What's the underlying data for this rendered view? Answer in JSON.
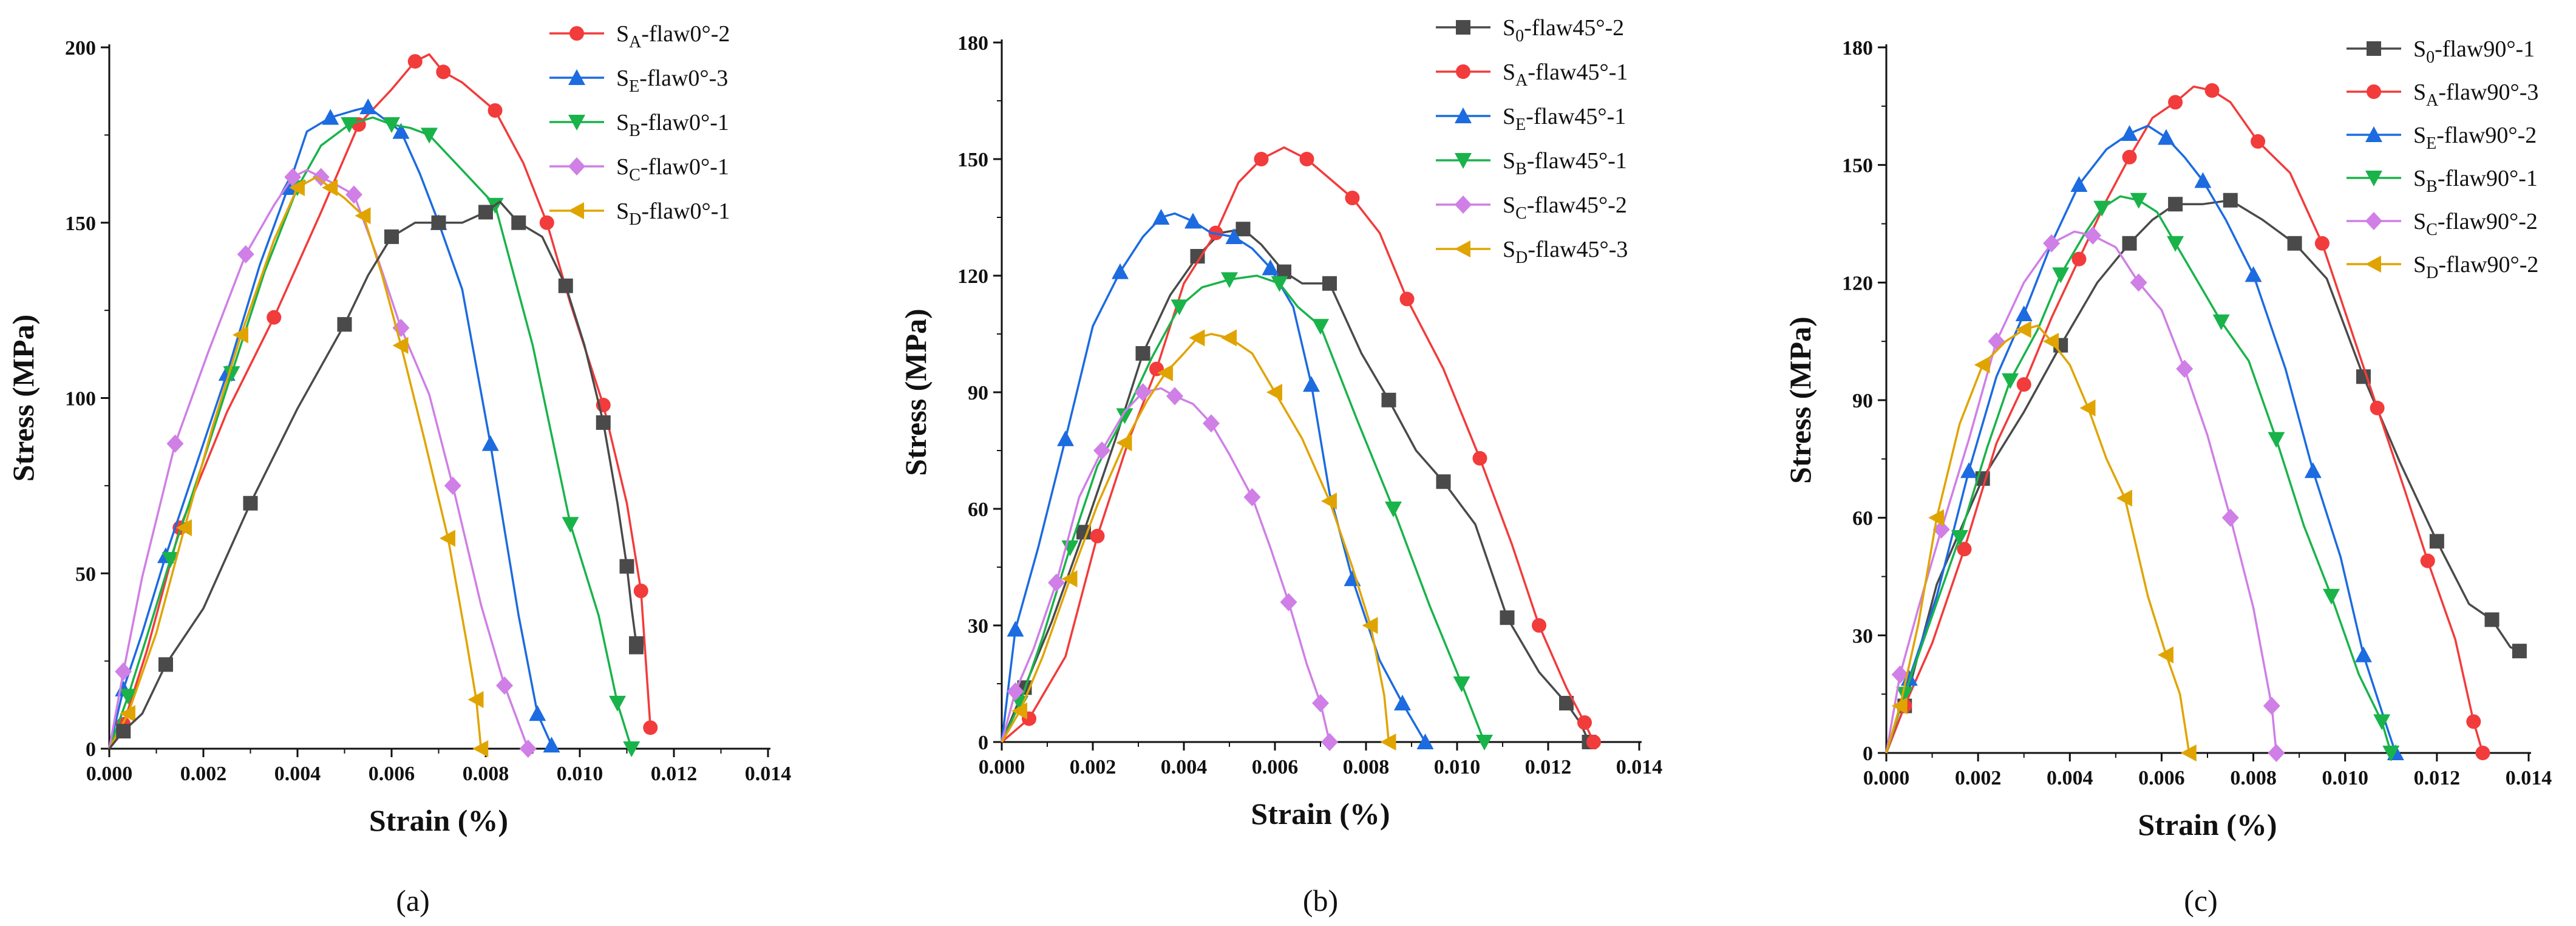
{
  "colors": {
    "S0": "#4a4a4a",
    "SA": "#f23b3b",
    "SE": "#1c6be0",
    "SB": "#19b34a",
    "SC": "#cf7fe6",
    "SD": "#e0a400",
    "axis": "#111111"
  },
  "chart_data": [
    {
      "type": "line",
      "caption": "(a)",
      "xlabel": "Strain (%)",
      "ylabel": "Stress (MPa)",
      "xlim": [
        0,
        0.014
      ],
      "ylim": [
        0,
        200
      ],
      "xticks": [
        "0.000",
        "0.002",
        "0.004",
        "0.006",
        "0.008",
        "0.010",
        "0.012",
        "0.014"
      ],
      "yticks": [
        "0",
        "50",
        "100",
        "150",
        "200"
      ],
      "legend_position": "top-right",
      "series": [
        {
          "sub": "A",
          "name": "-flaw0°-2",
          "color_key": "SA",
          "marker": "circle",
          "x": [
            0,
            0.0003,
            0.0008,
            0.0015,
            0.0025,
            0.0035,
            0.0045,
            0.0053,
            0.006,
            0.0065,
            0.0068,
            0.0071,
            0.0075,
            0.0082,
            0.0088,
            0.0093,
            0.0098,
            0.0105,
            0.011,
            0.0113,
            0.0115
          ],
          "y": [
            0,
            7,
            28,
            63,
            96,
            123,
            153,
            178,
            188,
            196,
            198,
            193,
            190,
            182,
            167,
            150,
            127,
            98,
            70,
            45,
            6
          ]
        },
        {
          "sub": "E",
          "name": "-flaw0°-3",
          "color_key": "SE",
          "marker": "triangle-up",
          "x": [
            0,
            0.0003,
            0.0007,
            0.0012,
            0.0018,
            0.0025,
            0.0032,
            0.0038,
            0.0042,
            0.0047,
            0.0052,
            0.0055,
            0.0058,
            0.0062,
            0.0066,
            0.007,
            0.0075,
            0.0081,
            0.0087,
            0.0091,
            0.0094
          ],
          "y": [
            0,
            17,
            33,
            55,
            79,
            107,
            138,
            160,
            176,
            180,
            182,
            183,
            180,
            176,
            164,
            150,
            131,
            87,
            38,
            10,
            1
          ]
        },
        {
          "sub": "B",
          "name": "-flaw0°-1",
          "color_key": "SB",
          "marker": "triangle-down",
          "x": [
            0,
            0.0004,
            0.0008,
            0.0013,
            0.0019,
            0.0026,
            0.0033,
            0.004,
            0.0045,
            0.0051,
            0.0056,
            0.006,
            0.0064,
            0.0068,
            0.0075,
            0.0082,
            0.009,
            0.0098,
            0.0104,
            0.0108,
            0.0111
          ],
          "y": [
            0,
            15,
            32,
            54,
            78,
            107,
            136,
            160,
            172,
            178,
            180,
            178,
            177,
            175,
            165,
            155,
            115,
            64,
            38,
            13,
            0
          ]
        },
        {
          "sub": "C",
          "name": "-flaw0°-1",
          "color_key": "SC",
          "marker": "diamond",
          "x": [
            0,
            0.0003,
            0.0007,
            0.0014,
            0.0021,
            0.0029,
            0.0035,
            0.0039,
            0.0042,
            0.0045,
            0.0048,
            0.0052,
            0.0057,
            0.0062,
            0.0068,
            0.0073,
            0.0079,
            0.0084,
            0.0089
          ],
          "y": [
            0,
            22,
            49,
            87,
            113,
            141,
            155,
            163,
            165,
            163,
            161,
            158,
            140,
            120,
            101,
            75,
            41,
            18,
            0
          ]
        },
        {
          "sub": "D",
          "name": "-flaw0°-1",
          "color_key": "SD",
          "marker": "triangle-left",
          "x": [
            0,
            0.0004,
            0.001,
            0.0016,
            0.0022,
            0.0028,
            0.0035,
            0.004,
            0.0044,
            0.0047,
            0.005,
            0.0054,
            0.0058,
            0.0062,
            0.0067,
            0.0072,
            0.0076,
            0.0078,
            0.0079
          ],
          "y": [
            0,
            10,
            33,
            63,
            92,
            118,
            145,
            160,
            163,
            160,
            157,
            152,
            135,
            115,
            88,
            60,
            30,
            14,
            0
          ]
        },
        {
          "sub": "0",
          "name": "-flaw0°-1",
          "color_key": "S0",
          "marker": "square",
          "in_legend": false,
          "x": [
            0,
            0.0003,
            0.0007,
            0.0012,
            0.002,
            0.003,
            0.004,
            0.005,
            0.0055,
            0.006,
            0.0065,
            0.007,
            0.0075,
            0.008,
            0.0083,
            0.0087,
            0.0092,
            0.0097,
            0.0101,
            0.0105,
            0.0108,
            0.011,
            0.0111,
            0.0112,
            0.0112
          ],
          "y": [
            0,
            5,
            10,
            24,
            40,
            70,
            97,
            121,
            135,
            146,
            150,
            150,
            150,
            153,
            156,
            150,
            146,
            132,
            115,
            93,
            70,
            52,
            40,
            30,
            29
          ]
        }
      ]
    },
    {
      "type": "line",
      "caption": "(b)",
      "xlabel": "Strain (%)",
      "ylabel": "Stress (MPa)",
      "xlim": [
        0,
        0.014
      ],
      "ylim": [
        0,
        180
      ],
      "xticks": [
        "0.000",
        "0.002",
        "0.004",
        "0.006",
        "0.008",
        "0.010",
        "0.012",
        "0.014"
      ],
      "yticks": [
        "0",
        "30",
        "60",
        "90",
        "120",
        "150",
        "180"
      ],
      "legend_position": "top-right",
      "series": [
        {
          "sub": "0",
          "name": "-flaw45°-2",
          "color_key": "S0",
          "marker": "square",
          "x": [
            0,
            0.0005,
            0.0011,
            0.0018,
            0.0025,
            0.0031,
            0.0037,
            0.0043,
            0.0048,
            0.0053,
            0.0057,
            0.0062,
            0.0066,
            0.0072,
            0.0079,
            0.0085,
            0.0091,
            0.0097,
            0.0104,
            0.0111,
            0.0118,
            0.0124,
            0.0127,
            0.0129
          ],
          "y": [
            0,
            14,
            31,
            54,
            78,
            100,
            115,
            125,
            131,
            132,
            128,
            121,
            118,
            118,
            100,
            88,
            75,
            67,
            56,
            32,
            18,
            10,
            5,
            0
          ]
        },
        {
          "sub": "A",
          "name": "-flaw45°-1",
          "color_key": "SA",
          "marker": "circle",
          "x": [
            0,
            0.0006,
            0.0014,
            0.0021,
            0.0028,
            0.0034,
            0.004,
            0.0047,
            0.0052,
            0.0057,
            0.0062,
            0.0067,
            0.0072,
            0.0077,
            0.0083,
            0.0089,
            0.0097,
            0.0105,
            0.0112,
            0.0118,
            0.0124,
            0.0128,
            0.013
          ],
          "y": [
            0,
            6,
            22,
            53,
            78,
            96,
            118,
            131,
            144,
            150,
            153,
            150,
            145,
            140,
            131,
            114,
            96,
            73,
            51,
            30,
            14,
            5,
            0
          ]
        },
        {
          "sub": "E",
          "name": "-flaw45°-1",
          "color_key": "SE",
          "marker": "triangle-up",
          "x": [
            0,
            0.0003,
            0.0008,
            0.0014,
            0.002,
            0.0026,
            0.0031,
            0.0035,
            0.0038,
            0.0042,
            0.0046,
            0.0051,
            0.0055,
            0.0059,
            0.0064,
            0.0068,
            0.0072,
            0.0077,
            0.0083,
            0.0088,
            0.0093
          ],
          "y": [
            0,
            29,
            50,
            78,
            107,
            121,
            130,
            135,
            136,
            134,
            131,
            130,
            127,
            122,
            112,
            92,
            64,
            42,
            21,
            10,
            0
          ]
        },
        {
          "sub": "B",
          "name": "-flaw45°-1",
          "color_key": "SB",
          "marker": "triangle-down",
          "x": [
            0,
            0.0004,
            0.0009,
            0.0015,
            0.0021,
            0.0027,
            0.0033,
            0.0039,
            0.0044,
            0.005,
            0.0056,
            0.0061,
            0.0065,
            0.007,
            0.0078,
            0.0086,
            0.0094,
            0.0101,
            0.0106
          ],
          "y": [
            0,
            10,
            27,
            50,
            71,
            84,
            99,
            112,
            117,
            119,
            120,
            118,
            112,
            107,
            83,
            60,
            35,
            15,
            0
          ]
        },
        {
          "sub": "C",
          "name": "-flaw45°-2",
          "color_key": "SC",
          "marker": "diamond",
          "x": [
            0,
            0.0003,
            0.0007,
            0.0012,
            0.0017,
            0.0022,
            0.0027,
            0.0031,
            0.0035,
            0.0038,
            0.0042,
            0.0046,
            0.005,
            0.0055,
            0.0059,
            0.0063,
            0.0067,
            0.007,
            0.0072
          ],
          "y": [
            0,
            13,
            24,
            41,
            63,
            75,
            85,
            90,
            91,
            89,
            87,
            82,
            74,
            63,
            50,
            36,
            20,
            10,
            0
          ]
        },
        {
          "sub": "D",
          "name": "-flaw45°-3",
          "color_key": "SD",
          "marker": "triangle-left",
          "x": [
            0,
            0.0004,
            0.0009,
            0.0015,
            0.0021,
            0.0027,
            0.0032,
            0.0036,
            0.004,
            0.0043,
            0.0046,
            0.005,
            0.0055,
            0.006,
            0.0066,
            0.0072,
            0.0077,
            0.0081,
            0.0084,
            0.0085
          ],
          "y": [
            0,
            8,
            22,
            42,
            61,
            77,
            88,
            95,
            100,
            104,
            105,
            104,
            100,
            90,
            78,
            62,
            45,
            30,
            12,
            0
          ]
        }
      ]
    },
    {
      "type": "line",
      "caption": "(c)",
      "xlabel": "Strain (%)",
      "ylabel": "Stress (MPa)",
      "xlim": [
        0,
        0.014
      ],
      "ylim": [
        0,
        180
      ],
      "xticks": [
        "0.000",
        "0.002",
        "0.004",
        "0.006",
        "0.008",
        "0.010",
        "0.012",
        "0.014"
      ],
      "yticks": [
        "0",
        "30",
        "60",
        "90",
        "120",
        "150",
        "180"
      ],
      "legend_position": "top-right",
      "series": [
        {
          "sub": "0",
          "name": "-flaw90°-1",
          "color_key": "S0",
          "marker": "square",
          "x": [
            0,
            0.0004,
            0.0011,
            0.0021,
            0.003,
            0.0038,
            0.0046,
            0.0053,
            0.0058,
            0.0063,
            0.0069,
            0.0075,
            0.0082,
            0.0089,
            0.0096,
            0.0104,
            0.0112,
            0.012,
            0.0127,
            0.0132,
            0.0136,
            0.0138
          ],
          "y": [
            0,
            12,
            43,
            70,
            87,
            104,
            120,
            130,
            136,
            140,
            140,
            141,
            136,
            130,
            121,
            96,
            74,
            54,
            38,
            34,
            27,
            26
          ]
        },
        {
          "sub": "A",
          "name": "-flaw90°-3",
          "color_key": "SA",
          "marker": "circle",
          "x": [
            0,
            0.0004,
            0.001,
            0.0017,
            0.0024,
            0.003,
            0.0036,
            0.0042,
            0.0048,
            0.0053,
            0.0058,
            0.0063,
            0.0067,
            0.0071,
            0.0075,
            0.0081,
            0.0088,
            0.0095,
            0.0101,
            0.0107,
            0.0113,
            0.0118,
            0.0124,
            0.0128,
            0.013
          ],
          "y": [
            0,
            12,
            28,
            52,
            79,
            94,
            111,
            126,
            141,
            152,
            162,
            166,
            170,
            169,
            166,
            156,
            148,
            130,
            109,
            88,
            67,
            49,
            29,
            8,
            0
          ]
        },
        {
          "sub": "E",
          "name": "-flaw90°-2",
          "color_key": "SE",
          "marker": "triangle-up",
          "x": [
            0,
            0.0005,
            0.0011,
            0.0018,
            0.0024,
            0.003,
            0.0036,
            0.0042,
            0.0048,
            0.0053,
            0.0057,
            0.0061,
            0.0065,
            0.0069,
            0.0074,
            0.008,
            0.0087,
            0.0093,
            0.0099,
            0.0104,
            0.0109,
            0.0111
          ],
          "y": [
            0,
            19,
            40,
            72,
            96,
            112,
            130,
            145,
            154,
            158,
            160,
            157,
            152,
            146,
            136,
            122,
            98,
            72,
            50,
            25,
            7,
            0
          ]
        },
        {
          "sub": "B",
          "name": "-flaw90°-1",
          "color_key": "SB",
          "marker": "triangle-down",
          "x": [
            0,
            0.0004,
            0.001,
            0.0016,
            0.0022,
            0.0027,
            0.0033,
            0.0038,
            0.0043,
            0.0047,
            0.0051,
            0.0055,
            0.0059,
            0.0063,
            0.0068,
            0.0073,
            0.0079,
            0.0085,
            0.0091,
            0.0097,
            0.0103,
            0.0108,
            0.011
          ],
          "y": [
            0,
            15,
            35,
            55,
            78,
            95,
            108,
            122,
            132,
            139,
            142,
            141,
            138,
            130,
            120,
            110,
            100,
            80,
            58,
            40,
            20,
            8,
            0
          ]
        },
        {
          "sub": "C",
          "name": "-flaw90°-2",
          "color_key": "SC",
          "marker": "diamond",
          "x": [
            0,
            0.0003,
            0.0007,
            0.0012,
            0.0018,
            0.0024,
            0.003,
            0.0036,
            0.0041,
            0.0045,
            0.005,
            0.0055,
            0.006,
            0.0065,
            0.007,
            0.0075,
            0.008,
            0.0084,
            0.0085
          ],
          "y": [
            0,
            20,
            37,
            57,
            80,
            105,
            120,
            130,
            133,
            132,
            129,
            120,
            113,
            98,
            81,
            60,
            37,
            12,
            0
          ]
        },
        {
          "sub": "D",
          "name": "-flaw90°-2",
          "color_key": "SD",
          "marker": "triangle-left",
          "x": [
            0,
            0.0003,
            0.0007,
            0.0011,
            0.0016,
            0.0021,
            0.0026,
            0.003,
            0.0033,
            0.0036,
            0.004,
            0.0044,
            0.0048,
            0.0052,
            0.0057,
            0.0061,
            0.0064,
            0.0066
          ],
          "y": [
            0,
            12,
            33,
            60,
            84,
            99,
            105,
            108,
            109,
            105,
            99,
            88,
            75,
            65,
            40,
            25,
            15,
            0
          ]
        }
      ]
    }
  ]
}
